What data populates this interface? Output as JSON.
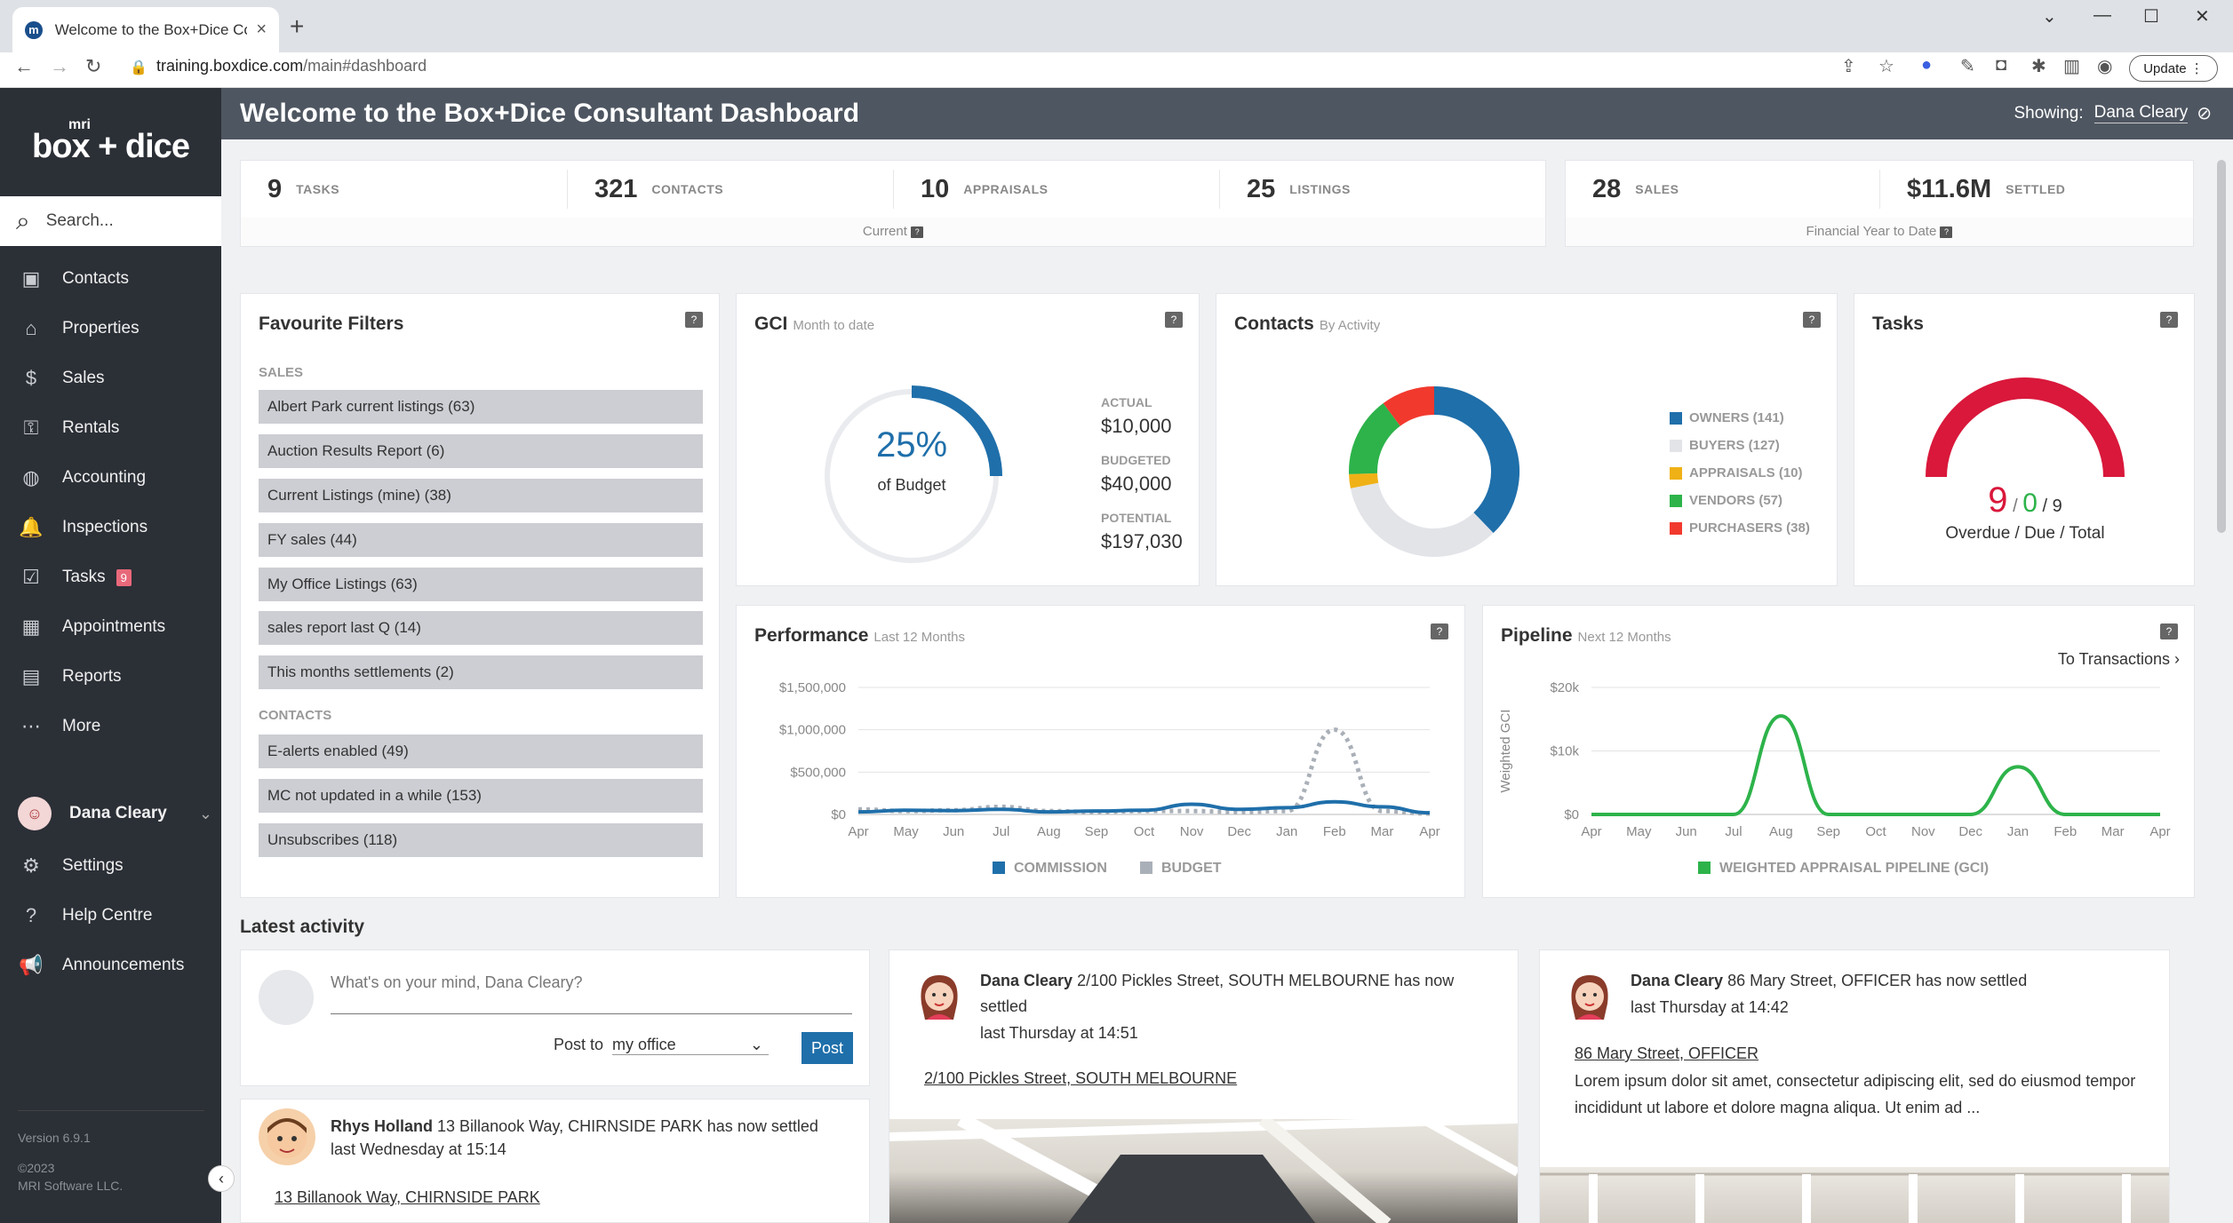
{
  "browser": {
    "tab_title": "Welcome to the Box+Dice Consu",
    "url_host": "training.boxdice.com",
    "url_path": "/main#dashboard",
    "update_label": "Update"
  },
  "sidebar": {
    "logo_small": "mri",
    "logo_brand": "box + dice",
    "search_placeholder": "Search...",
    "items": [
      {
        "label": "Contacts"
      },
      {
        "label": "Properties"
      },
      {
        "label": "Sales"
      },
      {
        "label": "Rentals"
      },
      {
        "label": "Accounting"
      },
      {
        "label": "Inspections"
      },
      {
        "label": "Tasks",
        "badge": "9"
      },
      {
        "label": "Appointments"
      },
      {
        "label": "Reports"
      },
      {
        "label": "More"
      }
    ],
    "user": "Dana Cleary",
    "bottom_items": [
      {
        "label": "Settings"
      },
      {
        "label": "Help Centre"
      },
      {
        "label": "Announcements"
      }
    ],
    "version": "Version 6.9.1",
    "copyright_year": "©2023",
    "copyright_owner": "MRI Software LLC."
  },
  "header": {
    "title": "Welcome to the Box+Dice Consultant Dashboard",
    "showing_label": "Showing:",
    "showing_name": "Dana Cleary"
  },
  "stats_current": {
    "items": [
      {
        "num": "9",
        "label": "TASKS"
      },
      {
        "num": "321",
        "label": "CONTACTS"
      },
      {
        "num": "10",
        "label": "APPRAISALS"
      },
      {
        "num": "25",
        "label": "LISTINGS"
      }
    ],
    "footer": "Current"
  },
  "stats_fy": {
    "items": [
      {
        "num": "28",
        "label": "SALES"
      },
      {
        "num": "$11.6M",
        "label": "SETTLED"
      }
    ],
    "footer": "Financial Year to Date"
  },
  "filters": {
    "title": "Favourite Filters",
    "sales_label": "SALES",
    "sales": [
      "Albert Park current listings (63)",
      "Auction Results Report (6)",
      "Current Listings (mine) (38)",
      "FY sales (44)",
      "My Office Listings (63)",
      "sales report last Q (14)",
      "This months settlements (2)"
    ],
    "contacts_label": "CONTACTS",
    "contacts": [
      "E-alerts enabled (49)",
      "MC not updated in a while (153)",
      "Unsubscribes (118)"
    ]
  },
  "gci": {
    "title": "GCI",
    "subtitle": "Month to date",
    "percent": "25%",
    "percent_value": 25,
    "of_label": "of Budget",
    "actual_label": "ACTUAL",
    "actual": "$10,000",
    "budgeted_label": "BUDGETED",
    "budgeted": "$40,000",
    "potential_label": "POTENTIAL",
    "potential": "$197,030",
    "color": "#1f6faa"
  },
  "contacts_chart": {
    "title": "Contacts",
    "subtitle": "By Activity"
  },
  "tasks": {
    "title": "Tasks",
    "overdue": "9",
    "due": "0",
    "total": "9",
    "caption": "Overdue / Due / Total",
    "overdue_color": "#d9183b",
    "due_color": "#2db34a"
  },
  "performance": {
    "title": "Performance",
    "subtitle": "Last 12 Months"
  },
  "pipeline": {
    "title": "Pipeline",
    "subtitle": "Next 12 Months",
    "link": "To Transactions"
  },
  "chart_data": [
    {
      "type": "pie",
      "title": "Contacts",
      "categories": [
        "OWNERS (141)",
        "BUYERS (127)",
        "APPRAISALS (10)",
        "VENDORS (57)",
        "PURCHASERS (38)"
      ],
      "values": [
        141,
        127,
        10,
        57,
        38
      ],
      "colors": [
        "#1f6faa",
        "#e2e4e8",
        "#f0b116",
        "#2db34a",
        "#f2392e"
      ],
      "legend": "right"
    },
    {
      "type": "line",
      "title": "Performance",
      "categories": [
        "Apr",
        "May",
        "Jun",
        "Jul",
        "Aug",
        "Sep",
        "Oct",
        "Nov",
        "Dec",
        "Jan",
        "Feb",
        "Mar",
        "Apr"
      ],
      "yticks": [
        "$0",
        "$500,000",
        "$1,000,000",
        "$1,500,000"
      ],
      "ylim": [
        0,
        1500000
      ],
      "series": [
        {
          "name": "COMMISSION",
          "color": "#1f6faa",
          "values": [
            30000,
            50000,
            45000,
            60000,
            30000,
            40000,
            50000,
            120000,
            60000,
            80000,
            150000,
            90000,
            20000
          ]
        },
        {
          "name": "BUDGET",
          "color": "#aab0b8",
          "values": [
            60000,
            40000,
            50000,
            90000,
            40000,
            30000,
            40000,
            40000,
            30000,
            40000,
            1000000,
            40000,
            10000
          ]
        }
      ],
      "legend": "bottom"
    },
    {
      "type": "line",
      "title": "Pipeline",
      "ylabel": "Weighted GCI",
      "categories": [
        "Apr",
        "May",
        "Jun",
        "Jul",
        "Aug",
        "Sep",
        "Oct",
        "Nov",
        "Dec",
        "Jan",
        "Feb",
        "Mar",
        "Apr"
      ],
      "yticks": [
        "$0",
        "$10k",
        "$20k"
      ],
      "ylim": [
        0,
        20000
      ],
      "series": [
        {
          "name": "WEIGHTED APPRAISAL PIPELINE (GCI)",
          "color": "#2db34a",
          "values": [
            0,
            0,
            0,
            0,
            15500,
            0,
            0,
            0,
            0,
            7500,
            0,
            0,
            0
          ]
        }
      ],
      "legend": "bottom"
    }
  ],
  "activity": {
    "title": "Latest activity",
    "post_placeholder": "What's on your mind, Dana Cleary?",
    "post_to_label": "Post to",
    "post_to_value": "my office",
    "post_button": "Post",
    "items": [
      {
        "name": "Rhys Holland",
        "text": "13 Billanook Way, CHIRNSIDE PARK has now settled",
        "time": "last Wednesday at 15:14",
        "link": "13 Billanook Way, CHIRNSIDE PARK"
      },
      {
        "name": "Dana Cleary",
        "text": "2/100 Pickles Street, SOUTH MELBOURNE has now settled",
        "time": "last Thursday at 14:51",
        "link": "2/100 Pickles Street, SOUTH MELBOURNE"
      },
      {
        "name": "Dana Cleary",
        "text": "86 Mary Street, OFFICER has now settled",
        "time": "last Thursday at 14:42",
        "link": "86 Mary Street, OFFICER",
        "body": "Lorem ipsum dolor sit amet, consectetur adipiscing elit, sed do eiusmod tempor incididunt ut labore et dolore magna aliqua. Ut enim ad ..."
      }
    ]
  }
}
